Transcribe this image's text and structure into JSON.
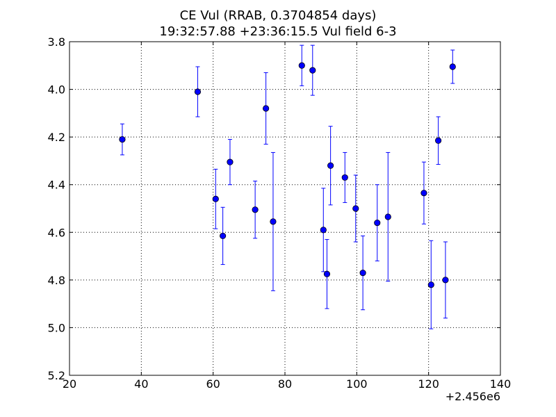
{
  "chart_data": {
    "type": "scatter",
    "title": "CE Vul (RRAB, 0.3704854 days)",
    "subtitle": "19:32:57.88 +23:36:15.5 Vul field 6-3",
    "xlabel": "",
    "ylabel": "",
    "x_offset_label": "+2.456e6",
    "xlim": [
      20,
      140
    ],
    "ylim": [
      5.2,
      3.8
    ],
    "y_inverted": true,
    "grid": true,
    "x_ticks": [
      "20",
      "40",
      "60",
      "80",
      "100",
      "120",
      "140"
    ],
    "y_ticks": [
      "3.8",
      "4.0",
      "4.2",
      "4.4",
      "4.6",
      "4.8",
      "5.0",
      "5.2"
    ],
    "marker_color": "#0000ff",
    "points": [
      {
        "x": 34.7,
        "y": 4.21,
        "err": 0.065
      },
      {
        "x": 55.7,
        "y": 4.01,
        "err": 0.105
      },
      {
        "x": 60.7,
        "y": 4.46,
        "err": 0.125
      },
      {
        "x": 62.7,
        "y": 4.615,
        "err": 0.12
      },
      {
        "x": 64.7,
        "y": 4.305,
        "err": 0.095
      },
      {
        "x": 71.7,
        "y": 4.505,
        "err": 0.12
      },
      {
        "x": 74.7,
        "y": 4.08,
        "err": 0.15
      },
      {
        "x": 76.7,
        "y": 4.555,
        "err": 0.29
      },
      {
        "x": 84.7,
        "y": 3.9,
        "err": 0.085
      },
      {
        "x": 87.7,
        "y": 3.92,
        "err": 0.105
      },
      {
        "x": 90.7,
        "y": 4.59,
        "err": 0.175
      },
      {
        "x": 91.7,
        "y": 4.775,
        "err": 0.145
      },
      {
        "x": 92.7,
        "y": 4.32,
        "err": 0.165
      },
      {
        "x": 96.7,
        "y": 4.37,
        "err": 0.105
      },
      {
        "x": 99.7,
        "y": 4.5,
        "err": 0.14
      },
      {
        "x": 101.7,
        "y": 4.77,
        "err": 0.155
      },
      {
        "x": 105.7,
        "y": 4.56,
        "err": 0.16
      },
      {
        "x": 108.7,
        "y": 4.535,
        "err": 0.27
      },
      {
        "x": 118.7,
        "y": 4.435,
        "err": 0.13
      },
      {
        "x": 120.7,
        "y": 4.82,
        "err": 0.185
      },
      {
        "x": 122.7,
        "y": 4.215,
        "err": 0.1
      },
      {
        "x": 124.7,
        "y": 4.8,
        "err": 0.16
      },
      {
        "x": 126.7,
        "y": 3.905,
        "err": 0.07
      }
    ]
  }
}
